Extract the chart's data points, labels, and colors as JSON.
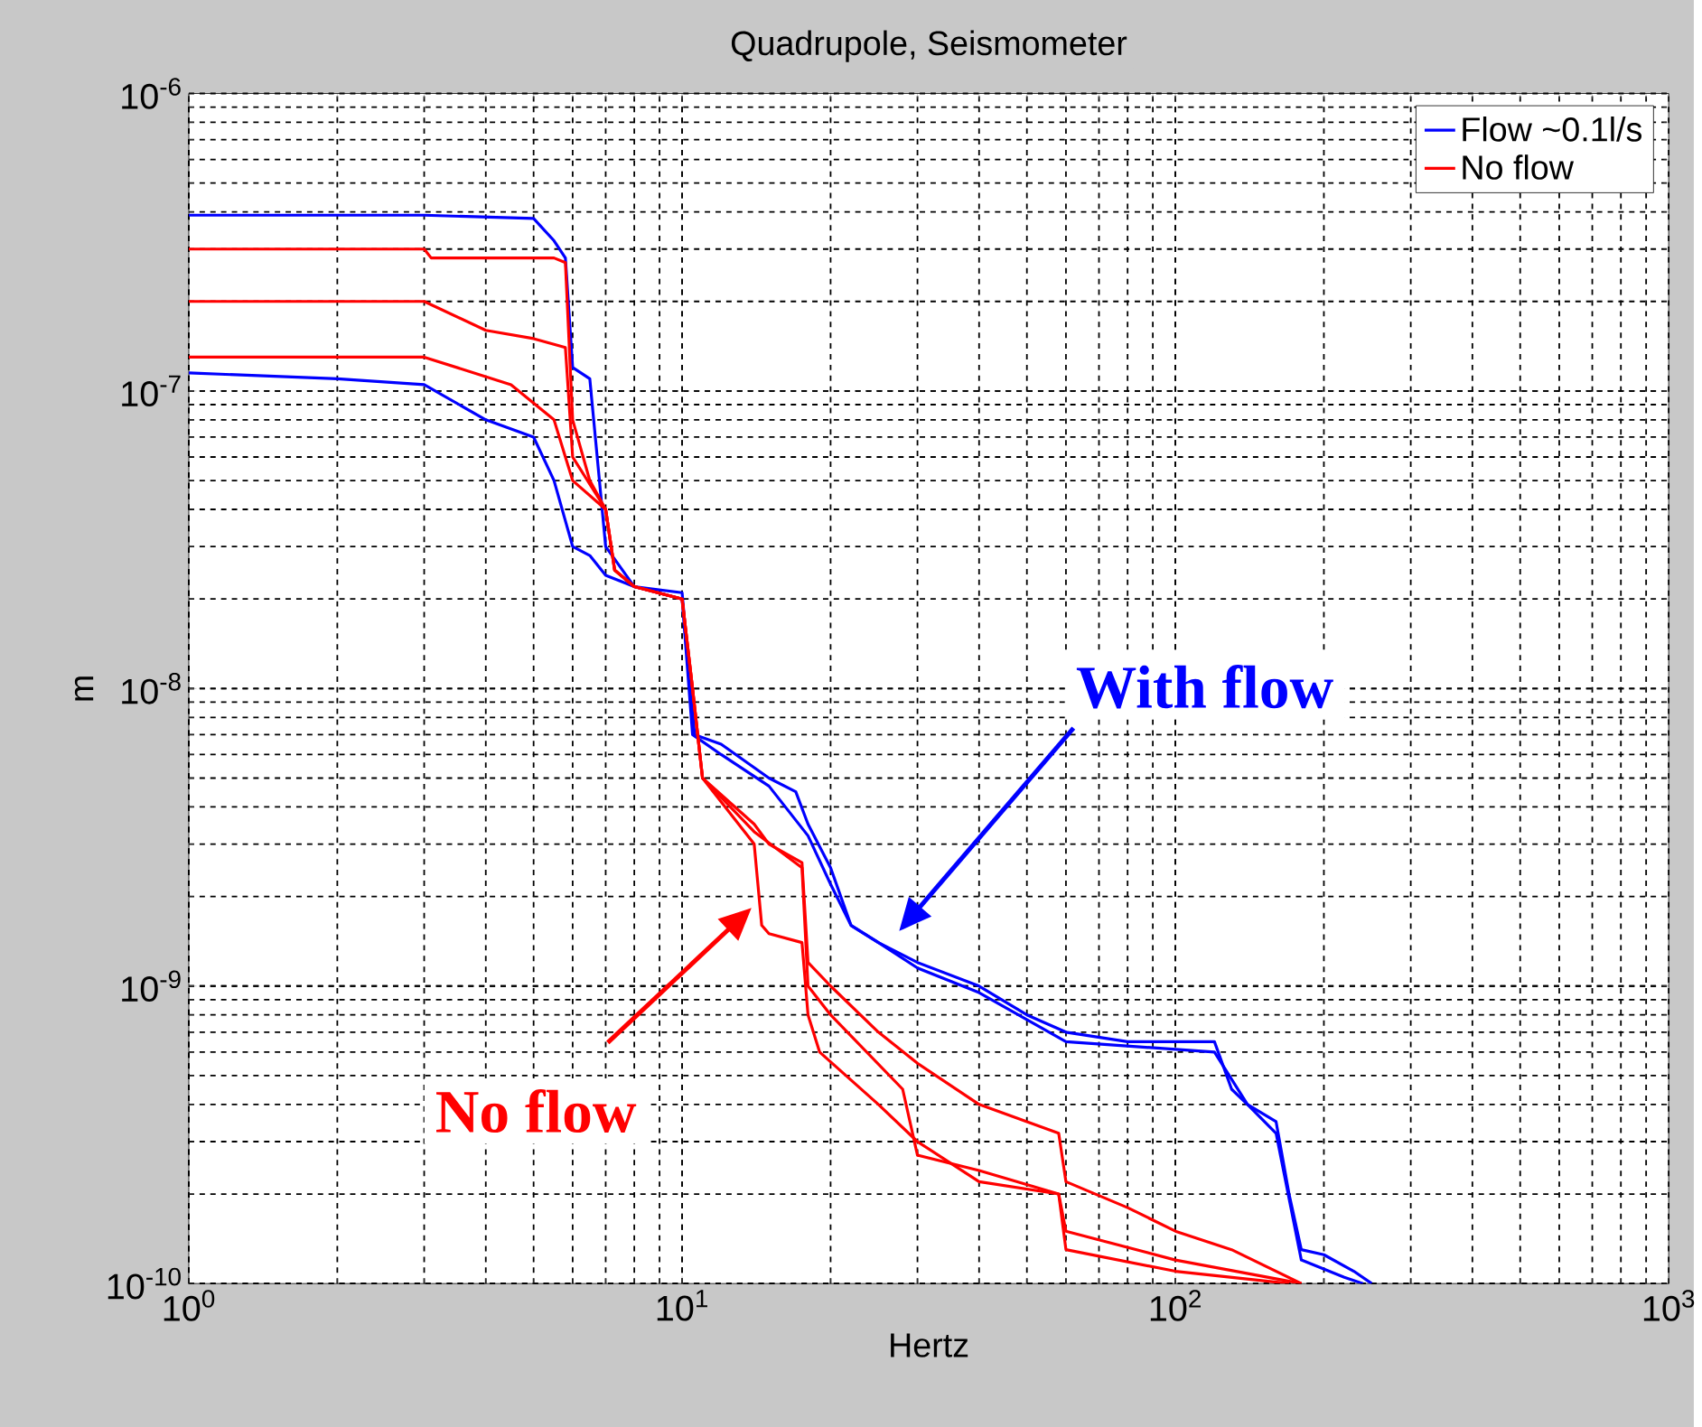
{
  "chart_data": {
    "type": "line",
    "title": "Quadrupole, Seismometer",
    "xlabel": "Hertz",
    "ylabel": "m",
    "log": "xy",
    "grid": true,
    "legend": "top right",
    "xlim": [
      1,
      1000
    ],
    "ylim": [
      1e-10,
      1e-06
    ],
    "xticks": [
      {
        "value": 1,
        "label": "10$^{0}$"
      },
      {
        "value": 10,
        "label": "10$^{1}$"
      },
      {
        "value": 100,
        "label": "10$^{2}$"
      },
      {
        "value": 1000,
        "label": "10$^{3}$"
      }
    ],
    "yticks": [
      {
        "value": 1e-10,
        "label": "10$^{-10}$"
      },
      {
        "value": 1e-09,
        "label": "10$^{-9}$"
      },
      {
        "value": 1e-08,
        "label": "10$^{-8}$"
      },
      {
        "value": 1e-07,
        "label": "10$^{-7}$"
      },
      {
        "value": 1e-06,
        "label": "10$^{-6}$"
      }
    ],
    "series": [
      {
        "name": "Flow ~0.1l/s",
        "color": "#0000ff",
        "x": [
          1,
          3,
          5,
          5.5,
          5.8,
          6,
          6.5,
          7,
          8,
          10,
          10.3,
          10.6,
          12,
          15,
          17,
          18,
          20,
          22,
          25,
          30,
          40,
          50,
          60,
          80,
          120,
          130,
          140,
          160,
          170,
          180,
          200,
          230,
          250
        ],
        "values": [
          3.9e-07,
          3.9e-07,
          3.8e-07,
          3.2e-07,
          2.8e-07,
          1.2e-07,
          1.1e-07,
          3e-08,
          2.2e-08,
          2.1e-08,
          1.2e-08,
          7e-09,
          6.5e-09,
          5e-09,
          4.5e-09,
          3.5e-09,
          2.5e-09,
          1.6e-09,
          1.4e-09,
          1.2e-09,
          1e-09,
          8e-10,
          7e-10,
          6.5e-10,
          6.5e-10,
          4.5e-10,
          4e-10,
          3.5e-10,
          2e-10,
          1.3e-10,
          1.25e-10,
          1.1e-10,
          1e-10
        ]
      },
      {
        "color": "#0000ff",
        "x": [
          1,
          2,
          3,
          4,
          5,
          5.5,
          6,
          6.5,
          7,
          8,
          10,
          10.5,
          12,
          15,
          18,
          20,
          22,
          25,
          30,
          40,
          60,
          120,
          140,
          160,
          180,
          220,
          240
        ],
        "values": [
          1.15e-07,
          1.1e-07,
          1.05e-07,
          8e-08,
          7e-08,
          5e-08,
          3e-08,
          2.8e-08,
          2.4e-08,
          2.2e-08,
          2e-08,
          7e-09,
          6e-09,
          4.7e-09,
          3.2e-09,
          2.2e-09,
          1.6e-09,
          1.4e-09,
          1.15e-09,
          9.5e-10,
          6.5e-10,
          6e-10,
          4e-10,
          3.2e-10,
          1.2e-10,
          1.05e-10,
          1e-10
        ]
      },
      {
        "name": "No flow",
        "color": "#ff0000",
        "x": [
          1,
          3,
          3.1,
          5.5,
          5.8,
          6,
          6.5,
          7,
          7.3,
          8,
          10,
          10.5,
          11,
          14,
          15,
          17.5,
          18,
          20,
          25,
          30,
          40,
          58,
          60,
          80,
          100,
          130,
          180
        ],
        "values": [
          3e-07,
          3e-07,
          2.8e-07,
          2.8e-07,
          2.7e-07,
          8e-08,
          5e-08,
          4e-08,
          2.5e-08,
          2.2e-08,
          2e-08,
          1e-08,
          5e-09,
          3.5e-09,
          3e-09,
          2.6e-09,
          1.2e-09,
          1e-09,
          7e-10,
          5.5e-10,
          4e-10,
          3.2e-10,
          2.2e-10,
          1.8e-10,
          1.5e-10,
          1.3e-10,
          1e-10
        ]
      },
      {
        "color": "#ff0000",
        "x": [
          1,
          3,
          4,
          5,
          5.8,
          6,
          7,
          7.3,
          8,
          10,
          10.5,
          11,
          14,
          17.5,
          18,
          20,
          28,
          30,
          40,
          58,
          60,
          100,
          180
        ],
        "values": [
          2e-07,
          2e-07,
          1.6e-07,
          1.5e-07,
          1.4e-07,
          6e-08,
          4e-08,
          2.5e-08,
          2.2e-08,
          2e-08,
          1e-08,
          5e-09,
          3.3e-09,
          2.5e-09,
          1e-09,
          8e-10,
          4.5e-10,
          2.7e-10,
          2.4e-10,
          2e-10,
          1.5e-10,
          1.2e-10,
          1e-10
        ]
      },
      {
        "color": "#ff0000",
        "x": [
          1,
          3,
          4.5,
          5.5,
          5.8,
          6,
          7,
          7.3,
          8,
          10,
          10.5,
          11,
          14,
          14.5,
          15,
          17.5,
          18,
          19,
          25,
          30,
          40,
          58,
          60,
          100,
          170
        ],
        "values": [
          1.3e-07,
          1.3e-07,
          1.05e-07,
          8e-08,
          6e-08,
          5e-08,
          4e-08,
          2.5e-08,
          2.2e-08,
          2e-08,
          1e-08,
          5e-09,
          3e-09,
          1.6e-09,
          1.5e-09,
          1.4e-09,
          8e-10,
          6e-10,
          4e-10,
          3e-10,
          2.2e-10,
          2e-10,
          1.3e-10,
          1.1e-10,
          1e-10
        ]
      }
    ],
    "annotations": [
      "With flow",
      "No flow"
    ]
  }
}
